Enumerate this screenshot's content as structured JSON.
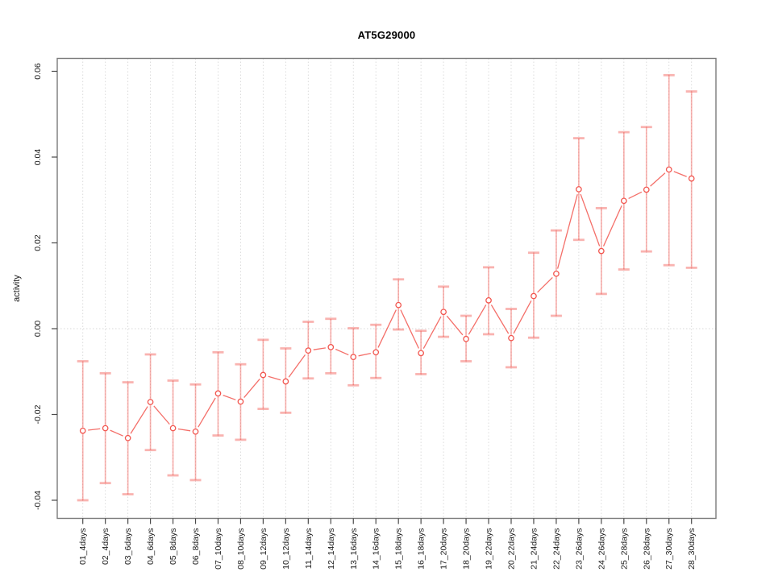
{
  "title": "AT5G29000",
  "chart_data": {
    "type": "line",
    "title": "AT5G29000",
    "xlabel": "",
    "ylabel": "activity",
    "ylim": [
      -0.045,
      0.062
    ],
    "yticks": [
      0.06,
      0.04,
      0.02,
      0.0,
      -0.02,
      -0.04
    ],
    "ytick_labels": [
      "0.06",
      "0.04",
      "0.02",
      "0.00",
      "-0.02",
      "-0.04"
    ],
    "grid": "dotted vertical line at every category; dotted horizontal line at 0.00",
    "legend_position": "none",
    "marker": "open-circle",
    "error_bars": true,
    "categories": [
      "01_4days",
      "02_4days",
      "03_6days",
      "04_6days",
      "05_8days",
      "06_8days",
      "07_10days",
      "08_10days",
      "09_12days",
      "10_12days",
      "11_14days",
      "12_14days",
      "13_16days",
      "14_16days",
      "15_18days",
      "16_18days",
      "17_20days",
      "18_20days",
      "19_22days",
      "20_22days",
      "21_24days",
      "22_24days",
      "23_26days",
      "24_26days",
      "25_28days",
      "26_28days",
      "27_30days",
      "28_30days"
    ],
    "series": [
      {
        "name": "activity",
        "values": [
          -0.0238,
          -0.0232,
          -0.0255,
          -0.0171,
          -0.0232,
          -0.024,
          -0.0151,
          -0.017,
          -0.0108,
          -0.0123,
          -0.0051,
          -0.0043,
          -0.0066,
          -0.0055,
          0.0055,
          -0.0057,
          0.0039,
          -0.0024,
          0.0066,
          -0.0022,
          0.0076,
          0.0128,
          0.0325,
          0.0181,
          0.0298,
          0.0324,
          0.0371,
          0.035
        ],
        "lower": [
          -0.04,
          -0.036,
          -0.0386,
          -0.0283,
          -0.0342,
          -0.0353,
          -0.0249,
          -0.0259,
          -0.0187,
          -0.0196,
          -0.0116,
          -0.0104,
          -0.0132,
          -0.0115,
          -0.0002,
          -0.0106,
          -0.0019,
          -0.0076,
          -0.0013,
          -0.009,
          -0.0021,
          0.003,
          0.0207,
          0.0081,
          0.0138,
          0.018,
          0.0148,
          0.0142
        ],
        "upper": [
          -0.0076,
          -0.0104,
          -0.0125,
          -0.006,
          -0.0121,
          -0.013,
          -0.0055,
          -0.0083,
          -0.0026,
          -0.0046,
          0.0016,
          0.0023,
          0.0001,
          0.0009,
          0.0115,
          -0.0005,
          0.0098,
          0.003,
          0.0143,
          0.0046,
          0.0177,
          0.0229,
          0.0444,
          0.0281,
          0.0458,
          0.047,
          0.0591,
          0.0553
        ]
      }
    ],
    "colors": {
      "series": "#f2564f",
      "error_bar": "#f2564f",
      "error_bar_opacity": 0.45,
      "grid": "#d8d8d8",
      "axis_box": "#7a7a7a",
      "tick": "#4a4a4a",
      "text": "#1a1a1a",
      "background": "#ffffff"
    }
  }
}
